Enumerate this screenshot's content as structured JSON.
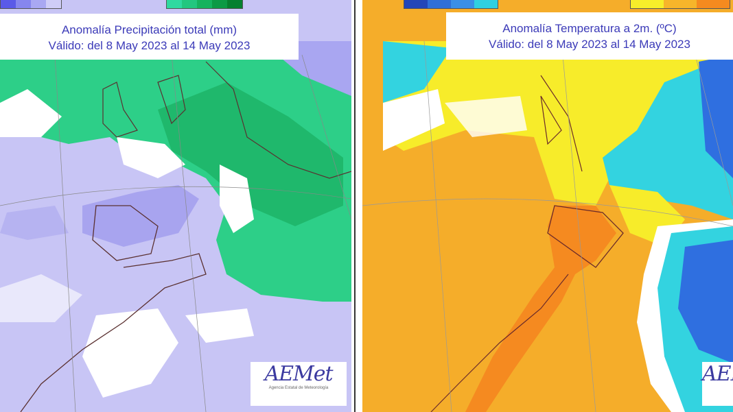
{
  "precipitation_map": {
    "title": "Anomalía Precipitación total (mm)",
    "validity": "Válido: del 8 May 2023 al 14 May 2023",
    "legend_colors": [
      "#5a5ae8",
      "#8686ee",
      "#a9a8f2",
      "#cfcdf7",
      "#ffffff",
      "#2fd9a0",
      "#22c77f",
      "#15b35e",
      "#0c9a45",
      "#06802f"
    ],
    "colors": {
      "dry": "#c8c5f5",
      "dry_strong": "#a8a4ef",
      "wet": "#2dcf88",
      "wet_strong": "#1fb86c"
    }
  },
  "temperature_map": {
    "title": "Anomalía Temperatura a 2m. (ºC)",
    "validity": "Válido: del 8 May 2023 al 14 May 2023",
    "legend_colors": [
      "#2346b8",
      "#2f6fd8",
      "#3a8fe6",
      "#2fd0e0",
      "#ffffff",
      "#f7ee2a",
      "#f7b52a",
      "#f58a1f"
    ],
    "colors": {
      "warm": "#f5ad2a",
      "hot": "#f58a20",
      "mild": "#f7ec2a",
      "cool": "#33d3e0",
      "cold": "#2f6fe0"
    }
  },
  "logo": {
    "text": "AEMet",
    "subtitle": "Agencia Estatal de Meteorología"
  }
}
